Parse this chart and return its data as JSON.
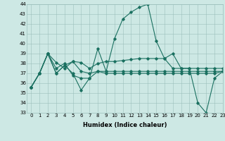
{
  "xlabel": "Humidex (Indice chaleur)",
  "background_color": "#cde8e4",
  "grid_color": "#9bbfbb",
  "line_color": "#1a7060",
  "ylim": [
    33,
    44
  ],
  "xlim": [
    -0.5,
    23
  ],
  "yticks": [
    33,
    34,
    35,
    36,
    37,
    38,
    39,
    40,
    41,
    42,
    43,
    44
  ],
  "xticks": [
    0,
    1,
    2,
    3,
    4,
    5,
    6,
    7,
    8,
    9,
    10,
    11,
    12,
    13,
    14,
    15,
    16,
    17,
    18,
    19,
    20,
    21,
    22,
    23
  ],
  "series": [
    [
      35.6,
      37.0,
      39.0,
      37.0,
      37.8,
      37.0,
      35.3,
      36.5,
      39.5,
      37.2,
      40.5,
      42.5,
      43.2,
      43.7,
      44.0,
      40.3,
      38.5,
      39.0,
      37.5,
      37.5,
      34.0,
      33.0,
      36.5,
      37.2
    ],
    [
      35.6,
      37.0,
      39.0,
      38.1,
      37.5,
      38.2,
      38.1,
      37.5,
      38.0,
      38.2,
      38.2,
      38.3,
      38.4,
      38.5,
      38.5,
      38.5,
      38.5,
      37.5,
      37.5,
      37.5,
      37.5,
      37.5,
      37.5,
      37.5
    ],
    [
      35.6,
      37.0,
      39.0,
      37.0,
      37.8,
      38.2,
      37.2,
      37.0,
      37.2,
      37.0,
      37.0,
      37.0,
      37.0,
      37.0,
      37.0,
      37.0,
      37.0,
      37.0,
      37.0,
      37.0,
      37.0,
      37.0,
      37.0,
      37.2
    ],
    [
      35.6,
      37.0,
      39.0,
      37.5,
      38.0,
      36.8,
      36.5,
      36.5,
      37.2,
      37.2,
      37.2,
      37.2,
      37.2,
      37.2,
      37.2,
      37.2,
      37.2,
      37.2,
      37.2,
      37.2,
      37.2,
      37.2,
      37.2,
      37.2
    ]
  ],
  "marker": "D",
  "markersize": 1.8,
  "linewidth": 0.8,
  "tick_fontsize": 5,
  "xlabel_fontsize": 6
}
